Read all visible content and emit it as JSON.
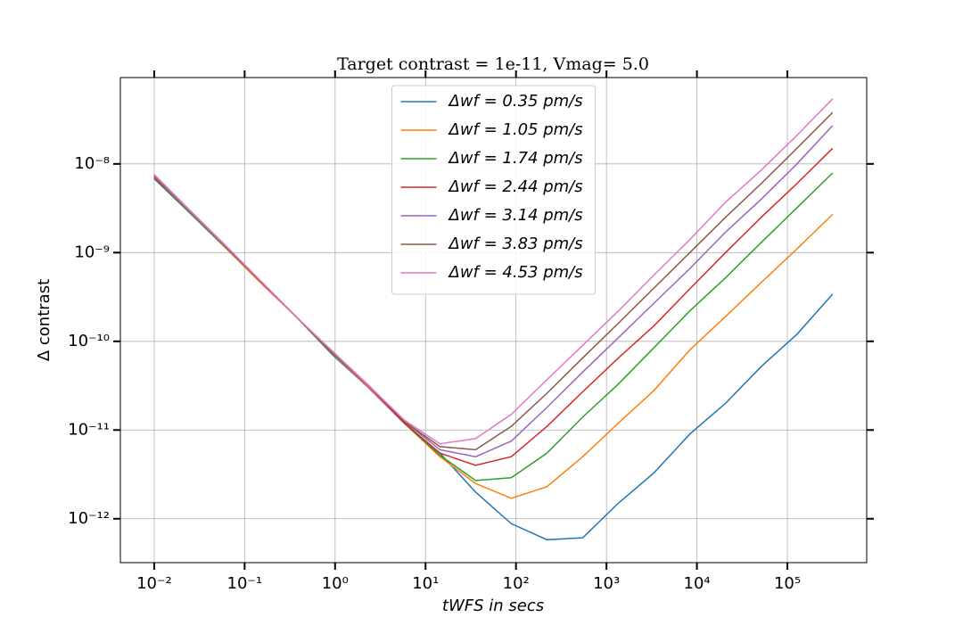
{
  "chart_data": {
    "type": "line",
    "title": "Target contrast = 1e-11, Vmag= 5.0",
    "x_label": "tWFS in secs",
    "y_label": "Δ contrast",
    "x": [
      0.01,
      0.0248,
      0.0616,
      0.153,
      0.379,
      0.941,
      2.34,
      5.8,
      14.4,
      35.7,
      88.6,
      220,
      546,
      1355,
      3360,
      8340,
      20700,
      51400,
      127500,
      316200
    ],
    "series": [
      {
        "name": "Δwf = 0.35 pm/s",
        "color": "#1f77b4",
        "values": [
          6.8e-09,
          2.8e-09,
          1.13e-09,
          4.6e-10,
          1.85e-10,
          7e-11,
          3e-11,
          1.2e-11,
          5.5e-12,
          2e-12,
          8.8e-13,
          5.8e-13,
          6.1e-13,
          1.5e-12,
          3.3e-12,
          9e-12,
          2e-11,
          5.2e-11,
          1.2e-10,
          3.4e-10
        ]
      },
      {
        "name": "Δwf = 1.05 pm/s",
        "color": "#ff7f0e",
        "values": [
          6.9e-09,
          2.8e-09,
          1.13e-09,
          4.5e-10,
          1.85e-10,
          7.2e-11,
          3e-11,
          1.2e-11,
          5e-12,
          2.5e-12,
          1.7e-12,
          2.3e-12,
          5e-12,
          1.2e-11,
          2.8e-11,
          8e-11,
          1.9e-10,
          4.6e-10,
          1.1e-09,
          2.7e-09
        ]
      },
      {
        "name": "Δwf = 1.74 pm/s",
        "color": "#2ca02c",
        "values": [
          6.9e-09,
          2.8e-09,
          1.15e-09,
          4.6e-10,
          1.85e-10,
          7.3e-11,
          3.1e-11,
          1.2e-11,
          5.2e-12,
          2.7e-12,
          2.9e-12,
          5.5e-12,
          1.4e-11,
          3.3e-11,
          8.5e-11,
          2.2e-10,
          5.2e-10,
          1.3e-09,
          3.2e-09,
          7.9e-09
        ]
      },
      {
        "name": "Δwf = 2.44 pm/s",
        "color": "#d62728",
        "values": [
          7.1e-09,
          2.9e-09,
          1.17e-09,
          4.6e-10,
          1.85e-10,
          7.4e-11,
          3.1e-11,
          1.2e-11,
          5.5e-12,
          4e-12,
          5e-12,
          1.1e-11,
          2.7e-11,
          6.5e-11,
          1.5e-10,
          3.9e-10,
          1e-09,
          2.5e-09,
          6e-09,
          1.5e-08
        ]
      },
      {
        "name": "Δwf = 3.14 pm/s",
        "color": "#9467bd",
        "values": [
          7.3e-09,
          2.9e-09,
          1.18e-09,
          4.7e-10,
          1.85e-10,
          7.5e-11,
          3.1e-11,
          1.25e-11,
          6e-12,
          5e-12,
          7.5e-12,
          1.8e-11,
          4.5e-11,
          1.1e-10,
          2.7e-10,
          6.6e-10,
          1.7e-09,
          4e-09,
          1e-08,
          2.7e-08
        ]
      },
      {
        "name": "Δwf = 3.83 pm/s",
        "color": "#8c564b",
        "values": [
          7.5e-09,
          3e-09,
          1.2e-09,
          4.7e-10,
          1.85e-10,
          7.6e-11,
          3.2e-11,
          1.25e-11,
          6.5e-12,
          6e-12,
          1.1e-11,
          2.6e-11,
          6.5e-11,
          1.6e-10,
          4e-10,
          1e-09,
          2.5e-09,
          6e-09,
          1.5e-08,
          3.8e-08
        ]
      },
      {
        "name": "Δwf = 4.53 pm/s",
        "color": "#e377c2",
        "values": [
          7.6e-09,
          3e-09,
          1.2e-09,
          4.7e-10,
          1.85e-10,
          7.7e-11,
          3.2e-11,
          1.3e-11,
          7e-12,
          8e-12,
          1.5e-11,
          3.7e-11,
          9e-11,
          2.2e-10,
          5.6e-10,
          1.4e-09,
          3.7e-09,
          8.5e-09,
          2.1e-08,
          5.4e-08
        ]
      }
    ],
    "xscale": "log",
    "yscale": "log",
    "xlim": [
      0.00423,
      753000
    ],
    "ylim": [
      3.2e-13,
      9.4e-08
    ],
    "xticks": [
      {
        "value": 0.01,
        "label": "10⁻²"
      },
      {
        "value": 0.1,
        "label": "10⁻¹"
      },
      {
        "value": 1,
        "label": "10⁰"
      },
      {
        "value": 10,
        "label": "10¹"
      },
      {
        "value": 100,
        "label": "10²"
      },
      {
        "value": 1000,
        "label": "10³"
      },
      {
        "value": 10000,
        "label": "10⁴"
      },
      {
        "value": 100000,
        "label": "10⁵"
      }
    ],
    "yticks": [
      {
        "value": 1e-12,
        "label": "10⁻¹²"
      },
      {
        "value": 1e-11,
        "label": "10⁻¹¹"
      },
      {
        "value": 1e-10,
        "label": "10⁻¹⁰"
      },
      {
        "value": 1e-09,
        "label": "10⁻⁹"
      },
      {
        "value": 1e-08,
        "label": "10⁻⁸"
      }
    ],
    "grid": true,
    "legend": "upper center"
  }
}
